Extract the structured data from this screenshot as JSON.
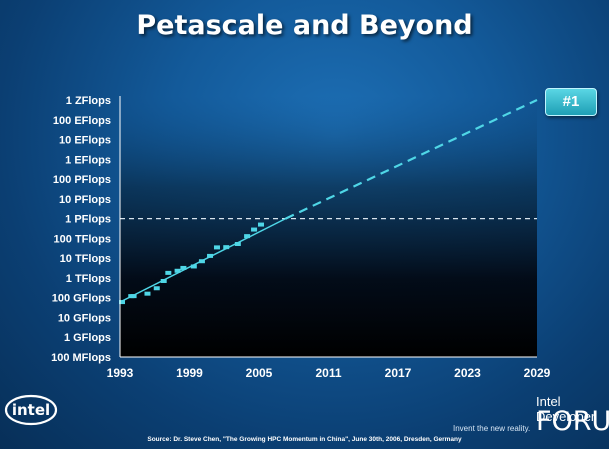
{
  "slide": {
    "title": "Petascale and Beyond",
    "source": "Source: Dr. Steve Chen, \"The Growing HPC Momentum in China\", June 30th, 2006, Dresden, Germany"
  },
  "badge": {
    "label": "#1"
  },
  "branding": {
    "logo_text": "intel",
    "event_line1": "Intel Developer",
    "event_line2": "FORUM",
    "tagline": "Invent the new reality."
  },
  "colors": {
    "accent": "#4fd6e6",
    "reference_line": "#d8e4ee",
    "axis_text": "#ffffff"
  },
  "chart_data": {
    "type": "line",
    "title": "",
    "xlabel": "",
    "ylabel": "",
    "x_ticks": [
      1993,
      1999,
      2005,
      2011,
      2017,
      2023,
      2029
    ],
    "xlim": [
      1993,
      2029
    ],
    "y_scale": "log10",
    "y_unit": "Flops",
    "y_ticks": [
      {
        "value": 100000000.0,
        "label": "100 MFlops"
      },
      {
        "value": 1000000000.0,
        "label": "1 GFlops"
      },
      {
        "value": 10000000000.0,
        "label": "10  GFlops"
      },
      {
        "value": 100000000000.0,
        "label": "100 GFlops"
      },
      {
        "value": 1000000000000.0,
        "label": "1 TFlops"
      },
      {
        "value": 10000000000000.0,
        "label": "10 TFlops"
      },
      {
        "value": 100000000000000.0,
        "label": "100 TFlops"
      },
      {
        "value": 1000000000000000.0,
        "label": "1 PFlops"
      },
      {
        "value": 1e+16,
        "label": "10 PFlops"
      },
      {
        "value": 1e+17,
        "label": "100 PFlops"
      },
      {
        "value": 1e+18,
        "label": "1 EFlops"
      },
      {
        "value": 1e+19,
        "label": "10 EFlops"
      },
      {
        "value": 1e+20,
        "label": "100 EFlops"
      },
      {
        "value": 1e+21,
        "label": "1 ZFlops"
      }
    ],
    "ylim": [
      100000000.0,
      1e+21
    ],
    "grid": false,
    "series": [
      {
        "name": "#1",
        "style": "steps",
        "points": [
          [
            1993.0,
            60000000000.0
          ],
          [
            1993.8,
            120000000000.0
          ],
          [
            1994.0,
            120000000000.0
          ],
          [
            1995.2,
            160000000000.0
          ],
          [
            1996.0,
            300000000000.0
          ],
          [
            1996.6,
            700000000000.0
          ],
          [
            1997.0,
            1800000000000.0
          ],
          [
            1997.8,
            2300000000000.0
          ],
          [
            1998.3,
            3200000000000.0
          ],
          [
            1999.2,
            3800000000000.0
          ],
          [
            1999.9,
            7000000000000.0
          ],
          [
            2000.6,
            13000000000000.0
          ],
          [
            2001.2,
            35000000000000.0
          ],
          [
            2002.0,
            36000000000000.0
          ],
          [
            2003.0,
            52000000000000.0
          ],
          [
            2003.8,
            130000000000000.0
          ],
          [
            2004.4,
            280000000000000.0
          ],
          [
            2005.0,
            500000000000000.0
          ]
        ]
      },
      {
        "name": "",
        "style": "solid-trend",
        "points": [
          [
            1993.0,
            60000000000.0
          ],
          [
            2007.3,
            1000000000000000.0
          ]
        ]
      },
      {
        "name": "",
        "style": "dashed-projection",
        "points": [
          [
            2007.3,
            1000000000000000.0
          ],
          [
            2029.0,
            1e+21
          ]
        ]
      }
    ],
    "reference_lines": [
      {
        "axis": "y",
        "value": 1000000000000000.0,
        "style": "dashed"
      }
    ]
  }
}
